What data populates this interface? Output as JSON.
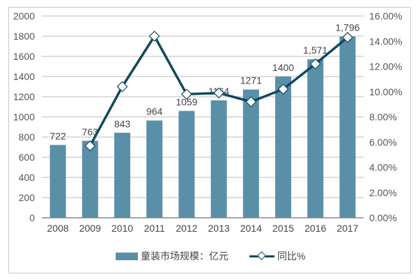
{
  "chart_data": {
    "type": "bar+line",
    "title": "",
    "categories": [
      "2008",
      "2009",
      "2010",
      "2011",
      "2012",
      "2013",
      "2014",
      "2015",
      "2016",
      "2017"
    ],
    "series": [
      {
        "name": "童装市场规模：亿元",
        "type": "bar",
        "axis": "left",
        "values": [
          722,
          763,
          843,
          964,
          1059,
          1164,
          1271,
          1400,
          1571,
          1796
        ],
        "labels": [
          "722",
          "763",
          "843",
          "964",
          "1059",
          "1164",
          "1271",
          "1400",
          "1,571",
          "1,796"
        ],
        "color": "#5a8fa8"
      },
      {
        "name": "同比%",
        "type": "line",
        "axis": "right",
        "values": [
          null,
          5.7,
          10.4,
          14.4,
          9.8,
          9.9,
          9.2,
          10.2,
          12.2,
          14.3
        ],
        "color": "#0e4a5c"
      }
    ],
    "left_axis": {
      "ticks": [
        "0",
        "200",
        "400",
        "600",
        "800",
        "1000",
        "1200",
        "1400",
        "1600",
        "1800",
        "2000"
      ],
      "ylim": [
        0,
        2000
      ]
    },
    "right_axis": {
      "ticks": [
        "0.00%",
        "2.00%",
        "4.00%",
        "6.00%",
        "8.00%",
        "10.00%",
        "12.00%",
        "14.00%",
        "16.00%"
      ],
      "ylim": [
        0,
        16
      ]
    },
    "grid": true,
    "legend_position": "bottom"
  },
  "legend": {
    "bar_label": "童装市场规模：亿元",
    "line_label": "同比%"
  }
}
